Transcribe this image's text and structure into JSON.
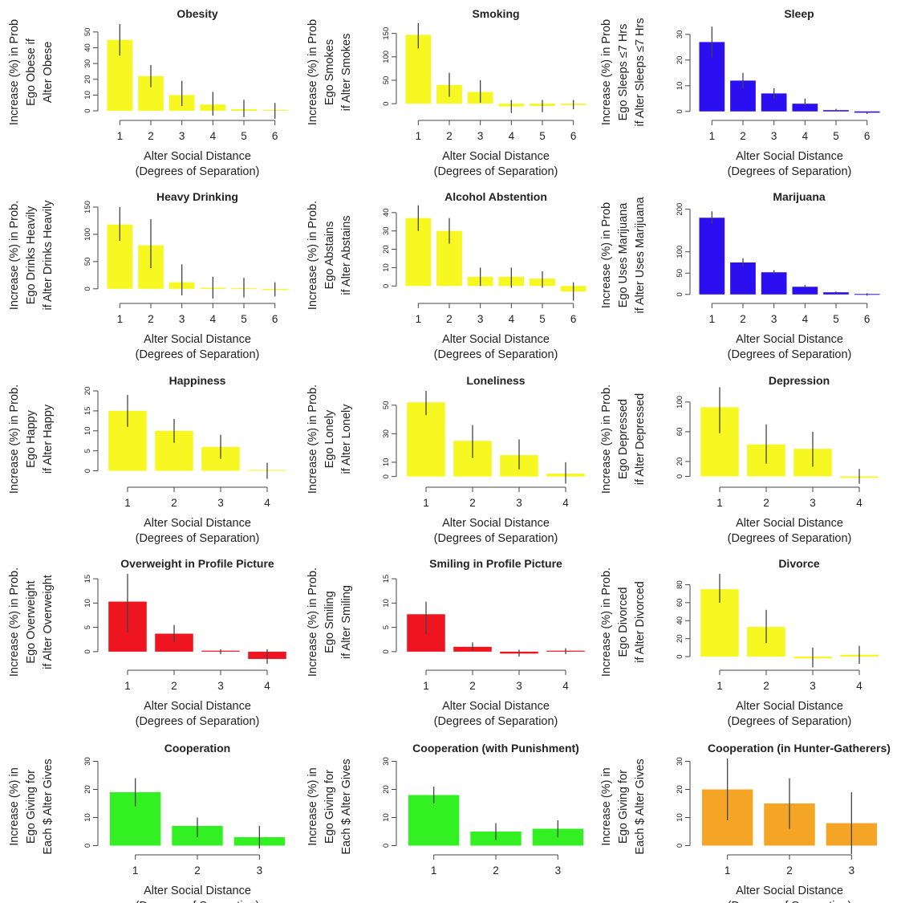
{
  "colors": {
    "yellow": "#f7f721",
    "blue": "#2b0ff0",
    "red": "#ee1520",
    "green": "#33f023",
    "orange": "#f5a526",
    "errorbar": "#444444",
    "axis": "#444444"
  },
  "chart_data": [
    {
      "type": "bar",
      "title": "Obesity",
      "ylabel_lines": [
        "Increase (%) in Prob",
        "Ego Obese if",
        "Alter Obese"
      ],
      "xlabel_lines": [
        "Alter Social Distance",
        "(Degrees of Separation)"
      ],
      "categories": [
        "1",
        "2",
        "3",
        "4",
        "5",
        "6"
      ],
      "values": [
        45,
        22,
        10,
        4,
        1,
        0.5
      ],
      "err_low": [
        35,
        15,
        3,
        -3,
        -4,
        -5
      ],
      "err_high": [
        55,
        29,
        19,
        12,
        7,
        5
      ],
      "ylim": [
        -2,
        55
      ],
      "yticks": [
        "0",
        "10",
        "20",
        "30",
        "40",
        "50"
      ],
      "ytick_values": [
        0,
        10,
        20,
        30,
        40,
        50
      ],
      "color": "#f7f721"
    },
    {
      "type": "bar",
      "title": "Smoking",
      "ylabel_lines": [
        "Increase (%) in Prob",
        "Ego Smokes",
        "if Alter Smokes"
      ],
      "xlabel_lines": [
        "Alter Social Distance",
        "(Degrees of Separation)"
      ],
      "categories": [
        "1",
        "2",
        "3",
        "4",
        "5",
        "6"
      ],
      "values": [
        147,
        40,
        25,
        -6,
        -5,
        -3
      ],
      "err_low": [
        118,
        15,
        2,
        -20,
        -18,
        -12
      ],
      "err_high": [
        172,
        66,
        50,
        8,
        8,
        8
      ],
      "ylim": [
        -22,
        170
      ],
      "yticks": [
        "0",
        "50",
        "100",
        "150"
      ],
      "ytick_values": [
        0,
        50,
        100,
        150
      ],
      "color": "#f7f721"
    },
    {
      "type": "bar",
      "title": "Sleep",
      "ylabel_lines": [
        "Increase (%) in Prob",
        "Ego Sleeps ≤7 Hrs",
        "if Alter Sleeps ≤7 Hrs"
      ],
      "xlabel_lines": [
        "Alter Social Distance",
        "(Degrees of Separation)"
      ],
      "categories": [
        "1",
        "2",
        "3",
        "4",
        "5",
        "6"
      ],
      "values": [
        27,
        12,
        7,
        3,
        0.5,
        -0.5
      ],
      "err_low": [
        21,
        9,
        5,
        2,
        0,
        -1
      ],
      "err_high": [
        33,
        15,
        9,
        5,
        1,
        0
      ],
      "ylim": [
        -1,
        34
      ],
      "yticks": [
        "0",
        "10",
        "20",
        "30"
      ],
      "ytick_values": [
        0,
        10,
        20,
        30
      ],
      "color": "#2b0ff0"
    },
    {
      "type": "bar",
      "title": "Heavy Drinking",
      "ylabel_lines": [
        "Increase (%) in Prob.",
        "Ego Drinks Heavily",
        "if Alter Drinks Heavily"
      ],
      "xlabel_lines": [
        "Alter Social Distance",
        "(Degrees of Separation)"
      ],
      "categories": [
        "1",
        "2",
        "3",
        "4",
        "5",
        "6"
      ],
      "values": [
        118,
        80,
        12,
        2,
        1,
        -2
      ],
      "err_low": [
        88,
        38,
        -12,
        -18,
        -16,
        -14
      ],
      "err_high": [
        150,
        128,
        45,
        22,
        20,
        12
      ],
      "ylim": [
        -15,
        150
      ],
      "yticks": [
        "0",
        "50",
        "100",
        "150"
      ],
      "ytick_values": [
        0,
        50,
        100,
        150
      ],
      "color": "#f7f721"
    },
    {
      "type": "bar",
      "title": "Alcohol Abstention",
      "ylabel_lines": [
        "Increase (%) in Prob.",
        "Ego Abstains",
        "if Alter Abstains"
      ],
      "xlabel_lines": [
        "Alter Social Distance",
        "(Degrees of Separation)"
      ],
      "categories": [
        "1",
        "2",
        "3",
        "4",
        "5",
        "6"
      ],
      "values": [
        37,
        30,
        5,
        5,
        4,
        -3
      ],
      "err_low": [
        30,
        23,
        0,
        -1,
        -1,
        -8
      ],
      "err_high": [
        44,
        37,
        10,
        10,
        8,
        2
      ],
      "ylim": [
        -6,
        43
      ],
      "yticks": [
        "0",
        "10",
        "20",
        "30",
        "40"
      ],
      "ytick_values": [
        0,
        10,
        20,
        30,
        40
      ],
      "color": "#f7f721"
    },
    {
      "type": "bar",
      "title": "Marijuana",
      "ylabel_lines": [
        "Increase (%) in Prob",
        "Ego Uses Marijuana",
        "if Alter Uses Marijuana"
      ],
      "xlabel_lines": [
        "Alter Social Distance",
        "(Degrees of Separation)"
      ],
      "categories": [
        "1",
        "2",
        "3",
        "4",
        "5",
        "6"
      ],
      "values": [
        180,
        75,
        52,
        18,
        5,
        1
      ],
      "err_low": [
        165,
        65,
        47,
        14,
        3,
        -3
      ],
      "err_high": [
        195,
        85,
        57,
        22,
        7,
        3
      ],
      "ylim": [
        -6,
        205
      ],
      "yticks": [
        "0",
        "50",
        "100",
        "200"
      ],
      "ytick_values": [
        0,
        50,
        100,
        200
      ],
      "color": "#2b0ff0"
    },
    {
      "type": "bar",
      "title": "Happiness",
      "ylabel_lines": [
        "Increase (%) in Prob.",
        "Ego Happy",
        "if Alter Happy"
      ],
      "xlabel_lines": [
        "Alter Social Distance",
        "(Degrees of Separation)"
      ],
      "categories": [
        "1",
        "2",
        "3",
        "4"
      ],
      "values": [
        15,
        10,
        6,
        0.2
      ],
      "err_low": [
        11,
        7,
        3,
        -2
      ],
      "err_high": [
        19,
        13,
        9,
        2
      ],
      "ylim": [
        -2.5,
        20
      ],
      "yticks": [
        "0",
        "5",
        "10",
        "15",
        "20"
      ],
      "ytick_values": [
        0,
        5,
        10,
        15,
        20
      ],
      "color": "#f7f721"
    },
    {
      "type": "bar",
      "title": "Loneliness",
      "ylabel_lines": [
        "Increase (%) in Prob.",
        "Ego Lonely",
        "if Alter Lonely"
      ],
      "xlabel_lines": [
        "Alter Social Distance",
        "(Degrees of Separation)"
      ],
      "categories": [
        "1",
        "2",
        "3",
        "4"
      ],
      "values": [
        52,
        25,
        15,
        2
      ],
      "err_low": [
        43,
        13,
        5,
        -5
      ],
      "err_high": [
        60,
        36,
        26,
        10
      ],
      "ylim": [
        -3,
        60
      ],
      "yticks": [
        "0",
        "10",
        "30",
        "50"
      ],
      "ytick_values": [
        0,
        10,
        30,
        50
      ],
      "color": "#f7f721"
    },
    {
      "type": "bar",
      "title": "Depression",
      "ylabel_lines": [
        "Increase (%) in Prob.",
        "Ego Depressed",
        "if Alter Depressed"
      ],
      "xlabel_lines": [
        "Alter Social Distance",
        "(Degrees of Separation)"
      ],
      "categories": [
        "1",
        "2",
        "3",
        "4"
      ],
      "values": [
        93,
        43,
        37,
        -2
      ],
      "err_low": [
        58,
        17,
        13,
        -10
      ],
      "err_high": [
        120,
        70,
        60,
        10
      ],
      "ylim": [
        -6,
        115
      ],
      "yticks": [
        "0",
        "20",
        "60",
        "100"
      ],
      "ytick_values": [
        0,
        20,
        60,
        100
      ],
      "color": "#f7f721"
    },
    {
      "type": "bar",
      "title": "Overweight in Profile Picture",
      "ylabel_lines": [
        "Increase (%) in Prob.",
        "Ego Overweight",
        "if Alter Overweight"
      ],
      "xlabel_lines": [
        "Alter Social Distance",
        "(Degrees of Separation)"
      ],
      "categories": [
        "1",
        "2",
        "3",
        "4"
      ],
      "values": [
        10.3,
        3.7,
        0.2,
        -1.5
      ],
      "err_low": [
        4,
        2,
        -0.5,
        -2.5
      ],
      "err_high": [
        16,
        5.5,
        0.5,
        0.5
      ],
      "ylim": [
        -2.5,
        16
      ],
      "yticks": [
        "0",
        "5",
        "10",
        "15"
      ],
      "ytick_values": [
        0,
        5,
        10,
        15
      ],
      "color": "#ee1520"
    },
    {
      "type": "bar",
      "title": "Smiling in Profile Picture",
      "ylabel_lines": [
        "Increase (%) in Prob.",
        "Ego Smiling",
        "if Alter Smiling"
      ],
      "xlabel_lines": [
        "Alter Social Distance",
        "(Degrees of Separation)"
      ],
      "categories": [
        "1",
        "2",
        "3",
        "4"
      ],
      "values": [
        7.7,
        1,
        -0.4,
        0.2
      ],
      "err_low": [
        3.5,
        0.3,
        -1,
        -0.5
      ],
      "err_high": [
        10.3,
        1.9,
        0.4,
        0.7
      ],
      "ylim": [
        -2.5,
        16
      ],
      "yticks": [
        "0",
        "5",
        "10",
        "15"
      ],
      "ytick_values": [
        0,
        5,
        10,
        15
      ],
      "color": "#ee1520"
    },
    {
      "type": "bar",
      "title": "Divorce",
      "ylabel_lines": [
        "Increase (%) in Prob.",
        "Ego Divorced",
        "if Alter Divorced"
      ],
      "xlabel_lines": [
        "Alter Social Distance",
        "(Degrees of Separation)"
      ],
      "categories": [
        "1",
        "2",
        "3",
        "4"
      ],
      "values": [
        75,
        33,
        -2,
        2
      ],
      "err_low": [
        60,
        15,
        -12,
        -8
      ],
      "err_high": [
        92,
        52,
        10,
        12
      ],
      "ylim": [
        -8,
        92
      ],
      "yticks": [
        "0",
        "20",
        "40",
        "60",
        "80"
      ],
      "ytick_values": [
        0,
        20,
        40,
        60,
        80
      ],
      "color": "#f7f721"
    },
    {
      "type": "bar",
      "title": "Cooperation",
      "ylabel_lines": [
        "Increase (%) in",
        "Ego Giving for",
        "Each $ Alter Gives"
      ],
      "xlabel_lines": [
        "Alter Social Distance",
        "(Degrees of Separation)"
      ],
      "categories": [
        "1",
        "2",
        "3"
      ],
      "values": [
        19,
        7,
        3
      ],
      "err_low": [
        14,
        3,
        -1
      ],
      "err_high": [
        24,
        10,
        7
      ],
      "ylim": [
        -1,
        31
      ],
      "yticks": [
        "0",
        "10",
        "20",
        "30"
      ],
      "ytick_values": [
        0,
        10,
        20,
        30
      ],
      "color": "#33f023"
    },
    {
      "type": "bar",
      "title": "Cooperation (with Punishment)",
      "ylabel_lines": [
        "Increase (%) in",
        "Ego Giving for",
        "Each $ Alter Gives"
      ],
      "xlabel_lines": [],
      "categories": [
        "1",
        "2",
        "3"
      ],
      "values": [
        18,
        5,
        6
      ],
      "err_low": [
        15,
        2,
        3
      ],
      "err_high": [
        21,
        8,
        9
      ],
      "ylim": [
        -1,
        31
      ],
      "yticks": [
        "0",
        "10",
        "20",
        "30"
      ],
      "ytick_values": [
        0,
        10,
        20,
        30
      ],
      "color": "#33f023"
    },
    {
      "type": "bar",
      "title": "Cooperation (in Hunter-Gatherers)",
      "ylabel_lines": [
        "Increase (%) in",
        "Ego Giving for",
        "Each $ Alter Gives"
      ],
      "xlabel_lines": [
        "Alter Social Distance",
        "(Degrees of Separation)"
      ],
      "categories": [
        "1",
        "2",
        "3"
      ],
      "values": [
        20,
        15,
        8
      ],
      "err_low": [
        9,
        6,
        -3
      ],
      "err_high": [
        31,
        24,
        19
      ],
      "ylim": [
        -1,
        31
      ],
      "yticks": [
        "0",
        "10",
        "20",
        "30"
      ],
      "ytick_values": [
        0,
        10,
        20,
        30
      ],
      "color": "#f5a526"
    }
  ]
}
